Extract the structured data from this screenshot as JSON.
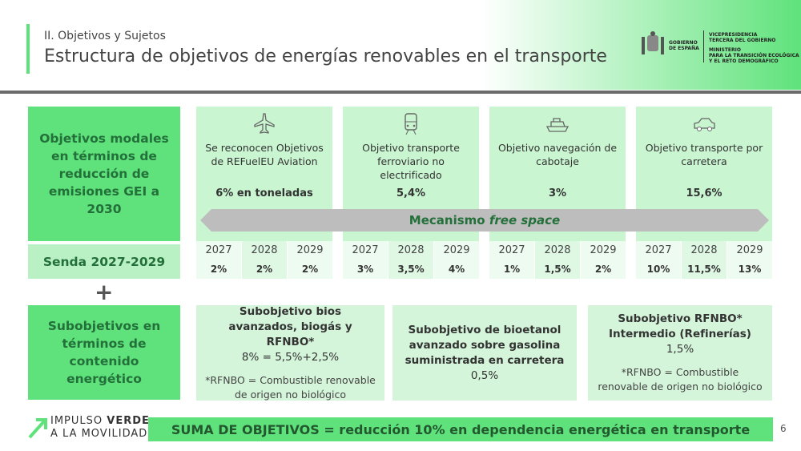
{
  "header": {
    "section": "II. Objetivos y Sujetos",
    "title": "Estructura de objetivos de energías renovables en el transporte"
  },
  "logo": {
    "gobierno": [
      "GOBIERNO",
      "DE ESPAÑA"
    ],
    "vicepresidencia": [
      "VICEPRESIDENCIA",
      "TERCERA DEL GOBIERNO"
    ],
    "ministerio": [
      "MINISTERIO",
      "PARA LA TRANSICIÓN ECOLÓGICA",
      "Y EL RETO DEMOGRÁFICO"
    ]
  },
  "modal_label": "Objetivos modales en términos de reducción de emisiones GEI a 2030",
  "modes": [
    {
      "title": "Se reconocen Objetivos de REFuelEU Aviation",
      "target": "6% en toneladas",
      "path": [
        {
          "year": 2027,
          "value": "2%"
        },
        {
          "year": 2028,
          "value": "2%"
        },
        {
          "year": 2029,
          "value": "2%"
        }
      ]
    },
    {
      "title": "Objetivo transporte ferroviario no electrificado",
      "target": "5,4%",
      "path": [
        {
          "year": 2027,
          "value": "3%"
        },
        {
          "year": 2028,
          "value": "3,5%"
        },
        {
          "year": 2029,
          "value": "4%"
        }
      ]
    },
    {
      "title": "Objetivo navegación de cabotaje",
      "target": "3%",
      "path": [
        {
          "year": 2027,
          "value": "1%"
        },
        {
          "year": 2028,
          "value": "1,5%"
        },
        {
          "year": 2029,
          "value": "2%"
        }
      ]
    },
    {
      "title": "Objetivo transporte por carretera",
      "target": "15,6%",
      "path": [
        {
          "year": 2027,
          "value": "10%"
        },
        {
          "year": 2028,
          "value": "11,5%"
        },
        {
          "year": 2029,
          "value": "13%"
        }
      ]
    }
  ],
  "mechanism": {
    "label": "Mecanismo",
    "emphasis": "free space"
  },
  "path_label": "Senda 2027-2029",
  "plus": "+",
  "sub_label": "Subobjetivos en términos de contenido energético",
  "subs": [
    {
      "title": "Subobjetivo bios avanzados, biogás y RFNBO*",
      "value": "8% = 5,5%+2,5%",
      "note": "*RFNBO = Combustible renovable de origen no biológico"
    },
    {
      "title": "Subobjetivo de bioetanol avanzado sobre gasolina suministrada en carretera",
      "value": "0,5%"
    },
    {
      "title": "Subobjetivo RFNBO* Intermedio (Refinerías)",
      "value": "1,5%",
      "note": "*RFNBO = Combustible renovable de origen no biológico"
    }
  ],
  "total": "SUMA DE OBJETIVOS = reducción 10% en dependencia energética en transporte",
  "footer": {
    "brand": "IMPULSO",
    "brand_strong": "VERDE",
    "brand_line2": "A LA MOVILIDAD",
    "page": 6
  }
}
